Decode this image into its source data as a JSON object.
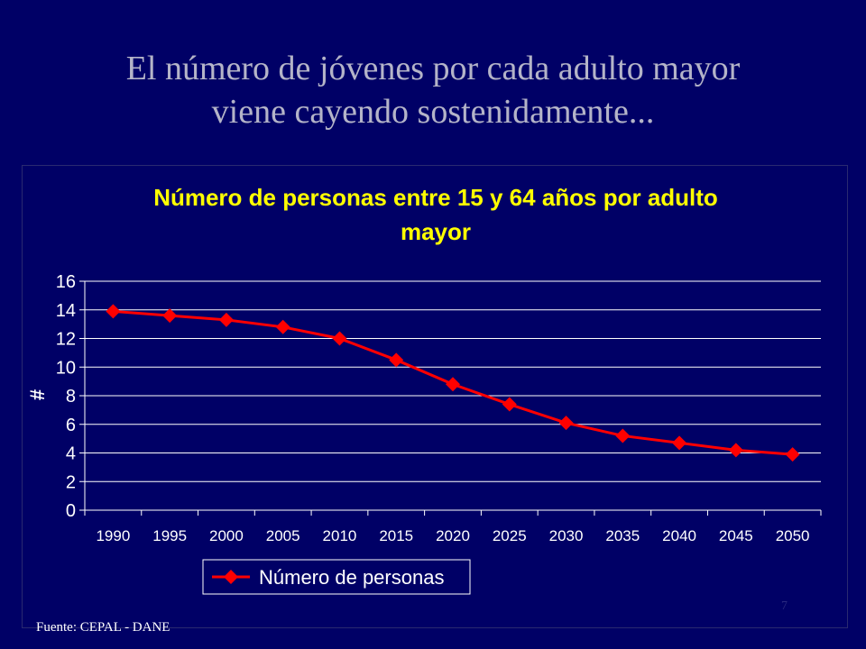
{
  "slide": {
    "title_line1": "El número de jóvenes por cada adulto mayor",
    "title_line2": "viene cayendo sostenidamente...",
    "source": "Fuente: CEPAL - DANE",
    "page_number": "7"
  },
  "chart_data": {
    "type": "line",
    "title_line1": "Número de personas entre 15 y 64 años por adulto",
    "title_line2": "mayor",
    "xlabel": "",
    "ylabel": "#",
    "ylim": [
      0,
      16
    ],
    "yticks": [
      0,
      2,
      4,
      6,
      8,
      10,
      12,
      14,
      16
    ],
    "grid": true,
    "legend_position": "bottom",
    "categories": [
      "1990",
      "1995",
      "2000",
      "2005",
      "2010",
      "2015",
      "2020",
      "2025",
      "2030",
      "2035",
      "2040",
      "2045",
      "2050"
    ],
    "series": [
      {
        "name": "Número de personas",
        "color": "#ff0000",
        "marker": "diamond",
        "values": [
          13.9,
          13.6,
          13.3,
          12.8,
          12.0,
          10.5,
          8.8,
          7.4,
          6.1,
          5.2,
          4.7,
          4.2,
          3.9
        ]
      }
    ],
    "colors": {
      "background": "#000066",
      "title": "#ffff00",
      "axis_text": "#ffffff",
      "grid": "#ffffff"
    }
  }
}
